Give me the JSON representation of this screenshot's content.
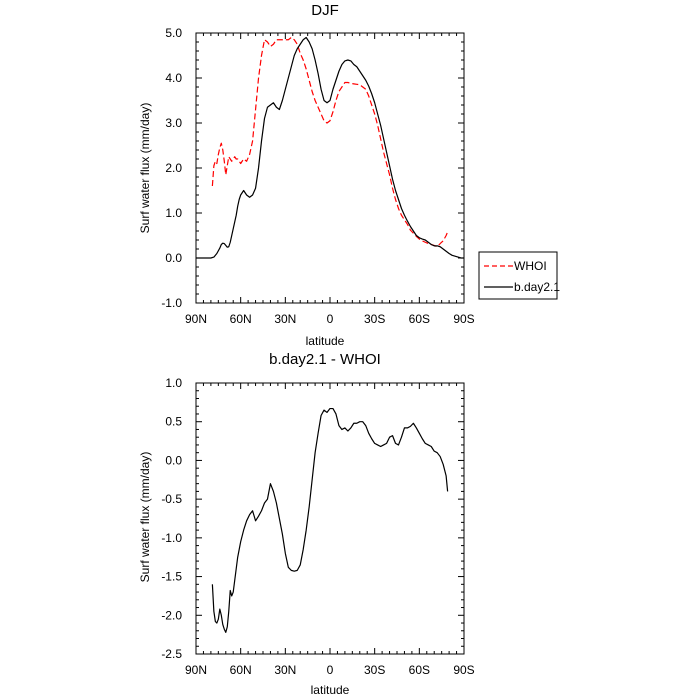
{
  "chart_data": [
    {
      "type": "line",
      "title": "DJF",
      "xlabel": "latitude",
      "ylabel": "Surf water flux (mm/day)",
      "xlim": [
        90,
        -90
      ],
      "ylim": [
        -1.0,
        5.0
      ],
      "xticks": [
        90,
        60,
        30,
        0,
        -30,
        -60,
        -90
      ],
      "xtick_labels": [
        "90N",
        "60N",
        "30N",
        "0",
        "30S",
        "60S",
        "90S"
      ],
      "yticks": [
        -1.0,
        0.0,
        1.0,
        2.0,
        3.0,
        4.0,
        5.0
      ],
      "ytick_labels": [
        "-1.0",
        "0.0",
        "1.0",
        "2.0",
        "3.0",
        "4.0",
        "5.0"
      ],
      "legend": [
        "WHOI",
        "b.day2.1"
      ],
      "series": [
        {
          "name": "WHOI",
          "color": "#ff0000",
          "dash": "dashed",
          "x": [
            79,
            78,
            77,
            76,
            75,
            74,
            73,
            72,
            71,
            70,
            69,
            68,
            67,
            66,
            65,
            64,
            63,
            62,
            61,
            60,
            58,
            56,
            54,
            52,
            50,
            48,
            46,
            44,
            42,
            40,
            38,
            36,
            34,
            32,
            30,
            28,
            26,
            24,
            22,
            20,
            18,
            16,
            14,
            12,
            10,
            8,
            6,
            4,
            2,
            0,
            -2,
            -4,
            -6,
            -8,
            -10,
            -12,
            -14,
            -16,
            -18,
            -20,
            -22,
            -24,
            -26,
            -28,
            -30,
            -32,
            -34,
            -36,
            -38,
            -40,
            -42,
            -44,
            -46,
            -48,
            -50,
            -52,
            -54,
            -56,
            -58,
            -60,
            -62,
            -64,
            -66,
            -68,
            -70,
            -72,
            -74,
            -76,
            -78,
            -79
          ],
          "values": [
            1.6,
            2.05,
            2.15,
            2.1,
            2.3,
            2.45,
            2.55,
            2.4,
            2.15,
            1.85,
            2.05,
            2.25,
            2.2,
            2.15,
            2.2,
            2.25,
            2.2,
            2.2,
            2.15,
            2.1,
            2.2,
            2.15,
            2.3,
            2.6,
            3.3,
            4.0,
            4.5,
            4.85,
            4.8,
            4.7,
            4.75,
            4.85,
            4.85,
            4.85,
            4.85,
            4.85,
            4.9,
            4.85,
            4.75,
            4.55,
            4.4,
            4.2,
            3.95,
            3.7,
            3.5,
            3.35,
            3.2,
            3.05,
            3.0,
            3.05,
            3.25,
            3.5,
            3.7,
            3.8,
            3.9,
            3.9,
            3.88,
            3.87,
            3.86,
            3.85,
            3.8,
            3.75,
            3.6,
            3.4,
            3.2,
            2.95,
            2.65,
            2.35,
            2.1,
            1.85,
            1.55,
            1.3,
            1.1,
            0.95,
            0.85,
            0.75,
            0.62,
            0.55,
            0.48,
            0.42,
            0.38,
            0.35,
            0.32,
            0.3,
            0.28,
            0.25,
            0.32,
            0.38,
            0.5,
            0.58
          ]
        },
        {
          "name": "b.day2.1",
          "color": "#000000",
          "dash": "solid",
          "x": [
            90,
            88,
            86,
            84,
            82,
            80,
            78,
            76,
            74,
            73,
            72,
            71,
            70,
            69,
            68,
            67,
            66,
            65,
            64,
            63,
            62,
            61,
            60,
            58,
            56,
            54,
            52,
            50,
            48,
            46,
            44,
            42,
            40,
            38,
            36,
            34,
            32,
            30,
            28,
            26,
            24,
            22,
            20,
            18,
            16,
            14,
            12,
            10,
            8,
            6,
            4,
            2,
            0,
            -2,
            -4,
            -6,
            -8,
            -10,
            -12,
            -14,
            -16,
            -18,
            -20,
            -22,
            -24,
            -26,
            -28,
            -30,
            -32,
            -34,
            -36,
            -38,
            -40,
            -42,
            -44,
            -46,
            -48,
            -50,
            -52,
            -54,
            -56,
            -58,
            -60,
            -62,
            -64,
            -66,
            -68,
            -70,
            -72,
            -74,
            -76,
            -78,
            -80,
            -82,
            -84,
            -86,
            -88,
            -90
          ],
          "values": [
            0.0,
            0.0,
            0.0,
            0.0,
            0.0,
            0.0,
            0.02,
            0.1,
            0.22,
            0.3,
            0.33,
            0.32,
            0.28,
            0.24,
            0.25,
            0.35,
            0.5,
            0.65,
            0.8,
            0.95,
            1.15,
            1.3,
            1.4,
            1.5,
            1.4,
            1.35,
            1.4,
            1.55,
            2.0,
            2.6,
            3.1,
            3.35,
            3.4,
            3.45,
            3.35,
            3.3,
            3.5,
            3.75,
            4.0,
            4.25,
            4.5,
            4.65,
            4.75,
            4.85,
            4.9,
            4.8,
            4.65,
            4.4,
            4.1,
            3.75,
            3.5,
            3.45,
            3.5,
            3.75,
            3.95,
            4.15,
            4.3,
            4.38,
            4.4,
            4.38,
            4.3,
            4.25,
            4.15,
            4.05,
            3.95,
            3.82,
            3.65,
            3.45,
            3.2,
            2.95,
            2.65,
            2.35,
            2.05,
            1.75,
            1.5,
            1.3,
            1.1,
            0.95,
            0.82,
            0.7,
            0.6,
            0.5,
            0.45,
            0.42,
            0.4,
            0.35,
            0.3,
            0.27,
            0.27,
            0.25,
            0.2,
            0.15,
            0.1,
            0.06,
            0.04,
            0.02,
            0.0,
            0.0
          ]
        }
      ]
    },
    {
      "type": "line",
      "title": "b.day2.1 - WHOI",
      "xlabel": "latitude",
      "ylabel": "Surf water flux (mm/day)",
      "xlim": [
        90,
        -90
      ],
      "ylim": [
        -2.5,
        1.0
      ],
      "xticks": [
        90,
        60,
        30,
        0,
        -30,
        -60,
        -90
      ],
      "xtick_labels": [
        "90N",
        "60N",
        "30N",
        "0",
        "30S",
        "60S",
        "90S"
      ],
      "yticks": [
        -2.5,
        -2.0,
        -1.5,
        -1.0,
        -0.5,
        0.0,
        0.5,
        1.0
      ],
      "ytick_labels": [
        "-2.5",
        "-2.0",
        "-1.5",
        "-1.0",
        "-0.5",
        "0.0",
        "0.5",
        "1.0"
      ],
      "series": [
        {
          "name": "b.day2.1 - WHOI",
          "color": "#000000",
          "dash": "solid",
          "x": [
            79,
            78,
            77,
            76,
            75,
            74,
            73,
            72,
            71,
            70,
            69,
            68,
            67,
            66,
            65,
            64,
            63,
            62,
            61,
            60,
            58,
            56,
            54,
            52,
            50,
            48,
            46,
            44,
            42,
            40,
            38,
            36,
            34,
            32,
            30,
            28,
            26,
            24,
            22,
            20,
            18,
            16,
            14,
            12,
            10,
            8,
            6,
            4,
            2,
            0,
            -2,
            -4,
            -6,
            -8,
            -10,
            -12,
            -14,
            -16,
            -18,
            -20,
            -22,
            -24,
            -26,
            -28,
            -30,
            -32,
            -34,
            -36,
            -38,
            -40,
            -42,
            -44,
            -46,
            -48,
            -50,
            -52,
            -54,
            -56,
            -58,
            -60,
            -62,
            -64,
            -66,
            -68,
            -70,
            -72,
            -74,
            -76,
            -78,
            -79
          ],
          "values": [
            -1.6,
            -1.95,
            -2.08,
            -2.1,
            -2.05,
            -1.92,
            -2.0,
            -2.12,
            -2.18,
            -2.22,
            -2.15,
            -1.95,
            -1.68,
            -1.75,
            -1.7,
            -1.55,
            -1.4,
            -1.25,
            -1.15,
            -1.05,
            -0.9,
            -0.78,
            -0.7,
            -0.65,
            -0.78,
            -0.72,
            -0.65,
            -0.55,
            -0.5,
            -0.3,
            -0.4,
            -0.55,
            -0.75,
            -0.95,
            -1.2,
            -1.38,
            -1.42,
            -1.43,
            -1.42,
            -1.35,
            -1.15,
            -0.9,
            -0.6,
            -0.25,
            0.1,
            0.35,
            0.58,
            0.65,
            0.62,
            0.67,
            0.67,
            0.6,
            0.45,
            0.4,
            0.42,
            0.38,
            0.42,
            0.48,
            0.48,
            0.5,
            0.5,
            0.45,
            0.35,
            0.28,
            0.22,
            0.2,
            0.18,
            0.2,
            0.22,
            0.3,
            0.32,
            0.22,
            0.2,
            0.3,
            0.42,
            0.42,
            0.44,
            0.48,
            0.42,
            0.35,
            0.28,
            0.22,
            0.2,
            0.18,
            0.12,
            0.1,
            0.05,
            -0.05,
            -0.2,
            -0.4
          ]
        }
      ]
    }
  ]
}
